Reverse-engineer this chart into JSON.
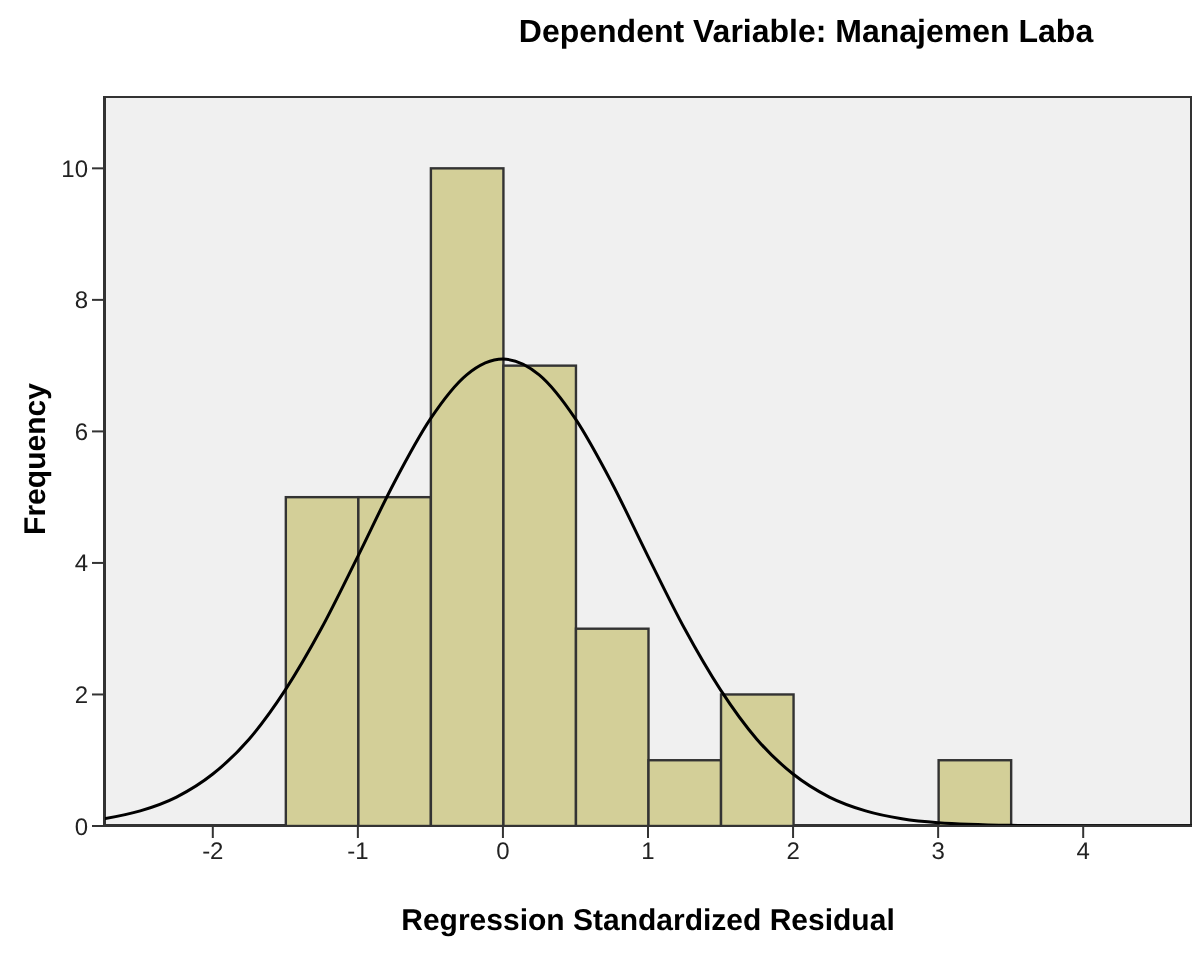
{
  "chart_data": {
    "type": "histogram",
    "title": "Dependent Variable: Manajemen Laba",
    "xlabel": "Regression Standardized Residual",
    "ylabel": "Frequency",
    "bins": [
      -1.5,
      -1,
      -0.5,
      0,
      0.5,
      1,
      1.5,
      2,
      2.5,
      3,
      3.5
    ],
    "values": [
      5,
      5,
      10,
      7,
      3,
      1,
      2,
      0,
      0,
      1
    ],
    "color": "#d3cf98",
    "xlim": [
      -2.75,
      4.75
    ],
    "xticks": [
      -2,
      -1,
      0,
      1,
      2,
      3,
      4
    ],
    "ylim": [
      0,
      11.1
    ],
    "yticks": [
      0,
      2,
      4,
      6,
      8,
      10
    ],
    "marker": "none",
    "series": [
      {
        "type": "line",
        "color": "#000000",
        "x": [
          -2.75,
          -2.5,
          -2.25,
          -2,
          -1.75,
          -1.5,
          -1.25,
          -1,
          -0.75,
          -0.5,
          -0.25,
          0,
          0.25,
          0.5,
          0.75,
          1,
          1.25,
          1.5,
          1.75,
          2,
          2.25,
          2.5,
          2.75,
          3,
          3.5,
          4,
          4.5,
          4.75
        ],
        "values": [
          0.11,
          0.23,
          0.44,
          0.79,
          1.32,
          2.07,
          3.01,
          4.1,
          5.22,
          6.19,
          6.86,
          7.1,
          6.86,
          6.19,
          5.22,
          4.1,
          3.01,
          2.07,
          1.32,
          0.79,
          0.44,
          0.23,
          0.11,
          0.05,
          0.01,
          0,
          0,
          0
        ]
      }
    ]
  }
}
